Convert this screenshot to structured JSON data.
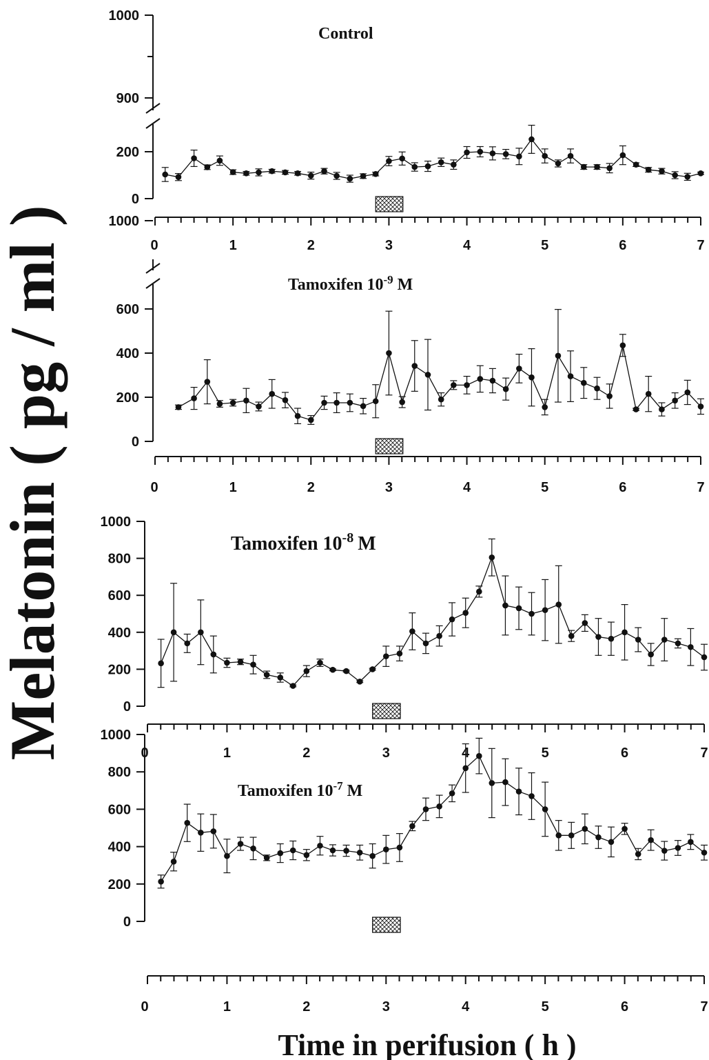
{
  "ylabel": "Melatonin ( pg / ml )",
  "xlabel": "Time in perifusion ( h )",
  "chart_data": [
    {
      "type": "line",
      "title": "Control",
      "title_sup": "",
      "title_end": "",
      "broken_axis": true,
      "ylim": [
        0,
        1000
      ],
      "yticks_lower": [
        0,
        200
      ],
      "yticks_upper": [
        900,
        1000
      ],
      "xlim": [
        0,
        7
      ],
      "xticks": [
        0,
        1,
        2,
        3,
        4,
        5,
        6,
        7
      ],
      "treatment_box": [
        2.83,
        3.18
      ],
      "x": [
        0.13,
        0.3,
        0.5,
        0.67,
        0.83,
        1.0,
        1.17,
        1.33,
        1.5,
        1.67,
        1.83,
        2.0,
        2.17,
        2.33,
        2.5,
        2.67,
        2.83,
        3.0,
        3.17,
        3.33,
        3.5,
        3.67,
        3.83,
        4.0,
        4.17,
        4.33,
        4.5,
        4.67,
        4.83,
        5.0,
        5.17,
        5.33,
        5.5,
        5.67,
        5.83,
        6.0,
        6.17,
        6.33,
        6.5,
        6.67,
        6.83,
        7.0
      ],
      "y": [
        103,
        92,
        172,
        134,
        162,
        113,
        108,
        112,
        117,
        112,
        108,
        98,
        117,
        97,
        85,
        96,
        105,
        160,
        171,
        135,
        138,
        155,
        145,
        197,
        200,
        193,
        190,
        180,
        253,
        182,
        150,
        182,
        135,
        135,
        130,
        185,
        145,
        123,
        117,
        100,
        93,
        108
      ],
      "err": [
        30,
        15,
        35,
        10,
        20,
        10,
        8,
        15,
        8,
        8,
        8,
        15,
        12,
        15,
        15,
        10,
        8,
        20,
        28,
        18,
        22,
        18,
        20,
        25,
        22,
        28,
        20,
        35,
        60,
        30,
        15,
        30,
        10,
        10,
        20,
        40,
        8,
        10,
        12,
        15,
        15,
        5
      ]
    },
    {
      "type": "line",
      "title": "Tamoxifen 10",
      "title_sup": "-9",
      "title_end": "M",
      "broken_axis": true,
      "ylim": [
        0,
        1000
      ],
      "yticks_lower": [
        0,
        200,
        400,
        600
      ],
      "yticks_upper": [
        1000
      ],
      "xlim": [
        0,
        7
      ],
      "xticks": [
        0,
        1,
        2,
        3,
        4,
        5,
        6,
        7
      ],
      "treatment_box": [
        2.83,
        3.18
      ],
      "x": [
        0.3,
        0.5,
        0.67,
        0.83,
        1.0,
        1.17,
        1.33,
        1.5,
        1.67,
        1.83,
        2.0,
        2.17,
        2.33,
        2.5,
        2.67,
        2.83,
        3.0,
        3.17,
        3.33,
        3.5,
        3.67,
        3.83,
        4.0,
        4.17,
        4.33,
        4.5,
        4.67,
        4.83,
        5.0,
        5.17,
        5.33,
        5.5,
        5.67,
        5.83,
        6.0,
        6.17,
        6.33,
        6.5,
        6.67,
        6.83,
        7.0
      ],
      "y": [
        155,
        195,
        270,
        170,
        175,
        185,
        158,
        215,
        187,
        115,
        97,
        175,
        175,
        175,
        160,
        182,
        400,
        178,
        342,
        302,
        190,
        255,
        255,
        283,
        275,
        237,
        330,
        290,
        155,
        388,
        295,
        265,
        240,
        205,
        435,
        145,
        215,
        145,
        185,
        222,
        158
      ],
      "err": [
        10,
        50,
        100,
        15,
        15,
        55,
        20,
        65,
        35,
        35,
        20,
        30,
        45,
        40,
        35,
        75,
        190,
        25,
        115,
        160,
        30,
        20,
        40,
        60,
        55,
        50,
        65,
        130,
        35,
        210,
        115,
        70,
        50,
        55,
        50,
        5,
        80,
        30,
        35,
        55,
        35
      ]
    },
    {
      "type": "line",
      "title": "Tamoxifen 10",
      "title_sup": "-8",
      "title_end": "M",
      "broken_axis": false,
      "ylim": [
        0,
        1000
      ],
      "yticks_lower": [
        0,
        200,
        400,
        600,
        800,
        1000
      ],
      "yticks_upper": [],
      "xlim": [
        0,
        7
      ],
      "xticks": [
        0,
        1,
        2,
        3,
        4,
        5,
        6,
        7
      ],
      "treatment_box": [
        2.83,
        3.18
      ],
      "x": [
        0.17,
        0.33,
        0.5,
        0.67,
        0.83,
        1.0,
        1.17,
        1.33,
        1.5,
        1.67,
        1.83,
        2.0,
        2.17,
        2.33,
        2.5,
        2.67,
        2.83,
        3.0,
        3.17,
        3.33,
        3.5,
        3.67,
        3.83,
        4.0,
        4.17,
        4.33,
        4.5,
        4.67,
        4.83,
        5.0,
        5.17,
        5.33,
        5.5,
        5.67,
        5.83,
        6.0,
        6.17,
        6.33,
        6.5,
        6.67,
        6.83,
        7.0
      ],
      "y": [
        232,
        400,
        340,
        400,
        280,
        235,
        240,
        225,
        170,
        155,
        110,
        190,
        235,
        197,
        190,
        133,
        200,
        270,
        285,
        405,
        340,
        380,
        470,
        505,
        620,
        805,
        545,
        530,
        500,
        520,
        550,
        380,
        450,
        375,
        365,
        400,
        360,
        280,
        360,
        340,
        320,
        265
      ],
      "err": [
        130,
        265,
        50,
        175,
        100,
        25,
        15,
        50,
        20,
        25,
        5,
        30,
        20,
        5,
        5,
        5,
        5,
        55,
        40,
        100,
        55,
        55,
        90,
        80,
        30,
        100,
        160,
        115,
        115,
        165,
        210,
        30,
        45,
        100,
        90,
        150,
        65,
        60,
        115,
        25,
        100,
        70
      ]
    },
    {
      "type": "line",
      "title": "Tamoxifen 10",
      "title_sup": "-7",
      "title_end": "M",
      "broken_axis": false,
      "ylim": [
        0,
        1000
      ],
      "yticks_lower": [
        0,
        200,
        400,
        600,
        800,
        1000
      ],
      "yticks_upper": [],
      "xlim": [
        0,
        7
      ],
      "xticks": [
        0,
        1,
        2,
        3,
        4,
        5,
        6,
        7
      ],
      "treatment_box": [
        2.83,
        3.18
      ],
      "x": [
        0.17,
        0.33,
        0.5,
        0.67,
        0.83,
        1.0,
        1.17,
        1.33,
        1.5,
        1.67,
        1.83,
        2.0,
        2.17,
        2.33,
        2.5,
        2.67,
        2.83,
        3.0,
        3.17,
        3.33,
        3.5,
        3.67,
        3.83,
        4.0,
        4.17,
        4.33,
        4.5,
        4.67,
        4.83,
        5.0,
        5.17,
        5.33,
        5.5,
        5.67,
        5.83,
        6.0,
        6.17,
        6.33,
        6.5,
        6.67,
        6.83,
        7.0
      ],
      "y": [
        213,
        320,
        527,
        475,
        482,
        350,
        415,
        390,
        340,
        365,
        380,
        355,
        405,
        380,
        378,
        368,
        350,
        385,
        395,
        510,
        600,
        615,
        685,
        820,
        885,
        740,
        745,
        695,
        670,
        600,
        460,
        460,
        495,
        450,
        425,
        495,
        360,
        435,
        378,
        393,
        425,
        368
      ],
      "err": [
        35,
        50,
        100,
        100,
        90,
        90,
        35,
        60,
        15,
        50,
        50,
        30,
        50,
        30,
        30,
        40,
        65,
        75,
        75,
        25,
        60,
        60,
        45,
        130,
        95,
        185,
        125,
        125,
        125,
        145,
        80,
        70,
        80,
        60,
        80,
        30,
        30,
        55,
        50,
        40,
        40,
        40
      ]
    }
  ]
}
